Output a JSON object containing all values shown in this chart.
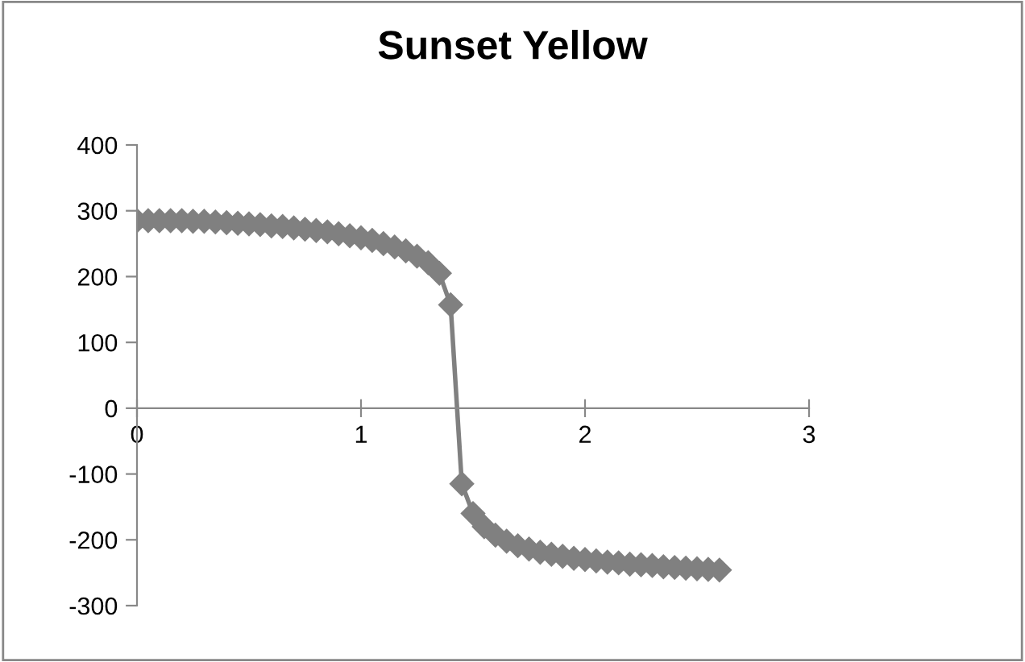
{
  "chart_data": {
    "type": "line",
    "title": "Sunset Yellow",
    "x": [
      0,
      0.05,
      0.1,
      0.15,
      0.2,
      0.25,
      0.3,
      0.35,
      0.4,
      0.45,
      0.5,
      0.55,
      0.6,
      0.65,
      0.7,
      0.75,
      0.8,
      0.85,
      0.9,
      0.95,
      1.0,
      1.05,
      1.1,
      1.15,
      1.2,
      1.25,
      1.3,
      1.35,
      1.4,
      1.45,
      1.5,
      1.55,
      1.6,
      1.65,
      1.7,
      1.75,
      1.8,
      1.85,
      1.9,
      1.95,
      2.0,
      2.05,
      2.1,
      2.15,
      2.2,
      2.25,
      2.3,
      2.35,
      2.4,
      2.45,
      2.5,
      2.55,
      2.6
    ],
    "series": [
      {
        "color": "#808080",
        "values": [
          285,
          285,
          285,
          285,
          285,
          284,
          284,
          283,
          282,
          281,
          280,
          279,
          277,
          276,
          274,
          272,
          270,
          268,
          265,
          262,
          259,
          255,
          250,
          245,
          239,
          231,
          221,
          205,
          157,
          -115,
          -160,
          -180,
          -193,
          -202,
          -209,
          -214,
          -219,
          -222,
          -225,
          -228,
          -230,
          -232,
          -234,
          -235,
          -237,
          -238,
          -239,
          -241,
          -242,
          -243,
          -244,
          -245,
          -246
        ]
      }
    ],
    "xlim": [
      0,
      3
    ],
    "xticks": [
      0,
      1,
      2,
      3
    ],
    "ylim": [
      -300,
      400
    ],
    "yticks": [
      -300,
      -200,
      -100,
      0,
      100,
      200,
      300,
      400
    ],
    "marker": "diamond",
    "line_style": "solid",
    "grid": false,
    "legend": false
  }
}
